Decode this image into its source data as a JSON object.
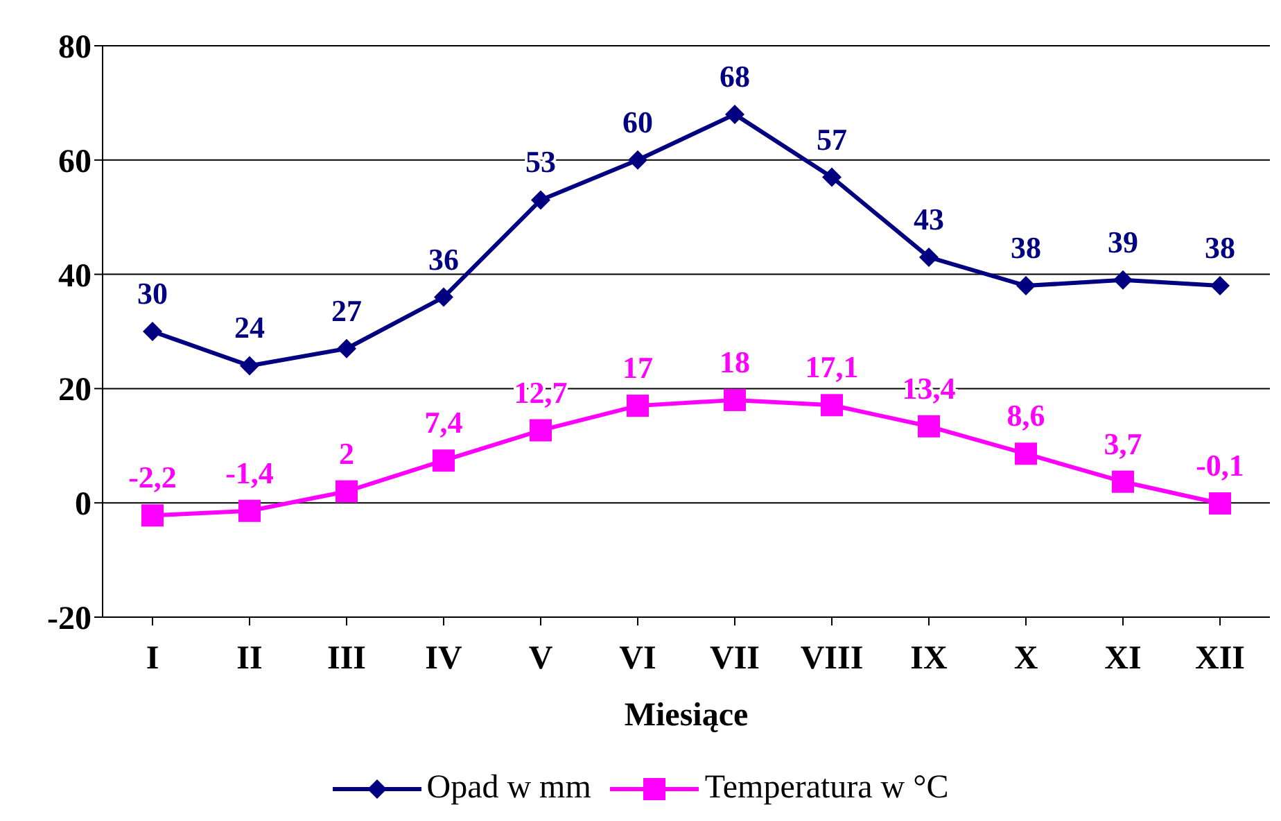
{
  "chart_data": {
    "type": "line",
    "xlabel": "Miesiące",
    "categories": [
      "I",
      "II",
      "III",
      "IV",
      "V",
      "VI",
      "VII",
      "VIII",
      "IX",
      "X",
      "XI",
      "XII"
    ],
    "series": [
      {
        "name": "Opad w mm",
        "color": "#000080",
        "marker": "diamond",
        "values": [
          30,
          24,
          27,
          36,
          53,
          60,
          68,
          57,
          43,
          38,
          39,
          38
        ],
        "value_labels": [
          "30",
          "24",
          "27",
          "36",
          "53",
          "60",
          "68",
          "57",
          "43",
          "38",
          "39",
          "38"
        ]
      },
      {
        "name": "Temperatura w °C",
        "color": "#ff00ff",
        "marker": "square",
        "values": [
          -2.2,
          -1.4,
          2,
          7.4,
          12.7,
          17,
          18,
          17.1,
          13.4,
          8.6,
          3.7,
          -0.1
        ],
        "value_labels": [
          "-2,2",
          "-1,4",
          "2",
          "7,4",
          "12,7",
          "17",
          "18",
          "17,1",
          "13,4",
          "8,6",
          "3,7",
          "-0,1"
        ]
      }
    ],
    "ylim": [
      -20,
      80
    ],
    "yticks": [
      -20,
      0,
      20,
      40,
      60,
      80
    ],
    "grid": "y",
    "legend": "bottom",
    "line_style": "solid"
  }
}
